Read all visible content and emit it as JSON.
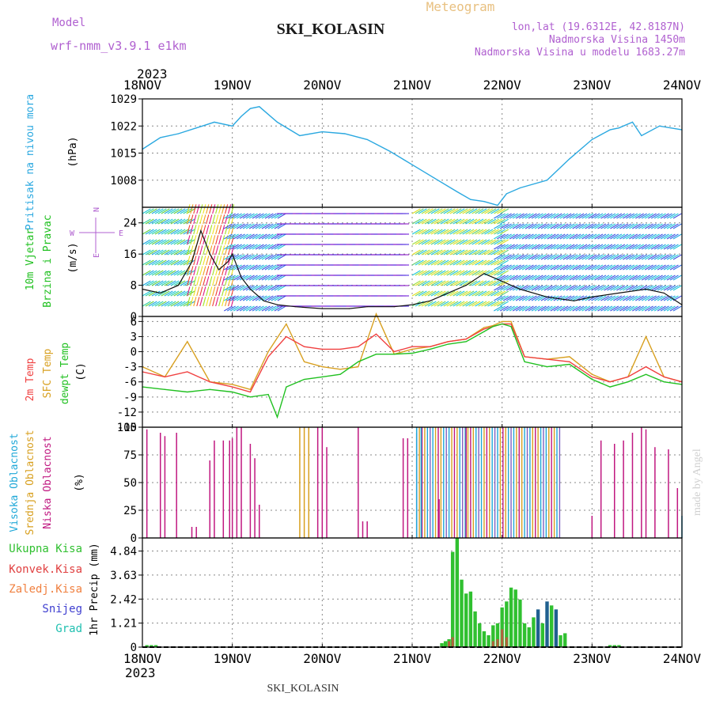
{
  "header": {
    "meteogram": "Meteogram",
    "model_label": "Model",
    "model_name": "wrf-nmm_v3.9.1 e1km",
    "station": "SKI_KOLASIN",
    "lonlat": "lon,lat (19.6312E, 42.8187N)",
    "elevation": "Nadmorska Visina 1450m",
    "model_elevation": "Nadmorska Visina u modelu 1683.27m",
    "year_top": "2023",
    "year_bottom": "2023",
    "footer_station": "SKI_KOLASIN",
    "watermark": "made by Angel"
  },
  "colors": {
    "pressure": "#2aa8e0",
    "t2m": "#f04040",
    "sfc": "#d8a020",
    "dewpt": "#20c020",
    "cloud_high": "#20a8d8",
    "cloud_mid": "#d8a020",
    "cloud_low": "#c01880",
    "precip_total": "#30c030",
    "precip_conv": "#e04040",
    "precip_frz": "#f08040",
    "precip_snow": "#4040d0",
    "precip_grad": "#20c0b0"
  },
  "chart_data": [
    {
      "type": "line",
      "panel": "pressure",
      "ylabel_lines": [
        "Pritisak na nivou mora",
        "(hPa)"
      ],
      "x_ticks": [
        "18NOV",
        "19NOV",
        "20NOV",
        "21NOV",
        "22NOV",
        "23NOV",
        "24NOV"
      ],
      "ylim": [
        1001,
        1029
      ],
      "y_ticks": [
        1008,
        1015,
        1022,
        1029
      ],
      "grid": true,
      "x_unit": "days since 18NOV 00UTC",
      "series": [
        {
          "name": "Pritisak",
          "x": [
            0,
            0.2,
            0.4,
            0.6,
            0.8,
            1.0,
            1.1,
            1.2,
            1.3,
            1.5,
            1.75,
            2.0,
            2.25,
            2.5,
            2.75,
            3.0,
            3.25,
            3.5,
            3.65,
            3.8,
            3.95,
            4.05,
            4.2,
            4.5,
            4.75,
            5.0,
            5.2,
            5.3,
            5.45,
            5.55,
            5.75,
            6.0
          ],
          "values": [
            1016,
            1019,
            1020,
            1021.5,
            1023,
            1022,
            1024.5,
            1026.5,
            1027,
            1023,
            1019.5,
            1020.5,
            1020,
            1018.5,
            1015.5,
            1012,
            1008.5,
            1005,
            1003,
            1002.5,
            1001.5,
            1004.5,
            1006,
            1008,
            1013.5,
            1018.5,
            1021,
            1021.5,
            1023,
            1019.5,
            1022,
            1021
          ]
        }
      ]
    },
    {
      "type": "line",
      "panel": "wind",
      "ylabel_lines": [
        "10m Vjetar",
        "Brzina i Pravac",
        "(m/s)"
      ],
      "compass": [
        "N",
        "E",
        "S",
        "W"
      ],
      "ylim": [
        0,
        28
      ],
      "y_ticks": [
        0,
        8,
        16,
        24
      ],
      "grid": true,
      "x_unit": "days since 18NOV 00UTC",
      "series": [
        {
          "name": "Brzina",
          "x": [
            0,
            0.2,
            0.4,
            0.55,
            0.65,
            0.75,
            0.85,
            0.95,
            1.0,
            1.1,
            1.2,
            1.35,
            1.5,
            1.7,
            2.0,
            2.3,
            2.5,
            2.8,
            3.0,
            3.2,
            3.4,
            3.6,
            3.8,
            4.0,
            4.2,
            4.5,
            4.8,
            5.0,
            5.3,
            5.6,
            5.8,
            6.0
          ],
          "values": [
            7,
            6,
            8,
            14,
            22,
            16,
            12,
            14,
            16,
            10,
            7,
            4,
            3,
            2.5,
            2,
            2,
            2.5,
            2.5,
            3,
            4,
            6,
            8,
            11,
            9,
            7,
            5,
            4,
            5,
            6,
            7,
            6,
            3
          ]
        }
      ],
      "wind_direction_by_segment": [
        {
          "from": 0.0,
          "to": 0.5,
          "direction": "SW",
          "speed_color": "cyan-green"
        },
        {
          "from": 0.5,
          "to": 1.0,
          "direction": "S",
          "speed_color": "yellow-red"
        },
        {
          "from": 1.0,
          "to": 1.6,
          "direction": "NE",
          "speed_color": "blue-cyan"
        },
        {
          "from": 1.6,
          "to": 3.0,
          "direction": "E",
          "speed_color": "violet"
        },
        {
          "from": 3.0,
          "to": 4.0,
          "direction": "SW",
          "speed_color": "cyan-yellow"
        },
        {
          "from": 4.0,
          "to": 6.0,
          "direction": "NE",
          "speed_color": "blue-cyan"
        }
      ]
    },
    {
      "type": "line",
      "panel": "temperature",
      "ylabel_lines": [
        "2m Temp",
        "SFC Temp",
        "dewpt Temp",
        "(C)"
      ],
      "ylim": [
        -15,
        7
      ],
      "y_ticks": [
        -15,
        -12,
        -9,
        -6,
        -3,
        0,
        3,
        6
      ],
      "grid": true,
      "x_unit": "days since 18NOV 00UTC",
      "series": [
        {
          "name": "2m Temp",
          "x": [
            0,
            0.25,
            0.5,
            0.75,
            1.0,
            1.2,
            1.4,
            1.6,
            1.8,
            2.0,
            2.2,
            2.4,
            2.6,
            2.8,
            3.0,
            3.2,
            3.4,
            3.6,
            3.8,
            3.9,
            4.0,
            4.1,
            4.25,
            4.5,
            4.75,
            5.0,
            5.2,
            5.4,
            5.6,
            5.8,
            6.0
          ],
          "values": [
            -4,
            -5,
            -4,
            -6,
            -7,
            -8,
            -1,
            3,
            1,
            0.5,
            0.5,
            1,
            3.5,
            0,
            1,
            1,
            2,
            2.5,
            4.5,
            5,
            5.5,
            5.5,
            -1,
            -1.5,
            -2,
            -5,
            -6,
            -5,
            -3,
            -5,
            -6
          ]
        },
        {
          "name": "SFC Temp",
          "x": [
            0,
            0.25,
            0.5,
            0.75,
            1.0,
            1.2,
            1.4,
            1.6,
            1.8,
            2.0,
            2.2,
            2.4,
            2.6,
            2.8,
            3.0,
            3.2,
            3.4,
            3.6,
            3.8,
            3.9,
            4.0,
            4.1,
            4.25,
            4.5,
            4.75,
            5.0,
            5.2,
            5.4,
            5.6,
            5.8,
            6.0
          ],
          "values": [
            -3,
            -5,
            2,
            -6,
            -6.5,
            -7.5,
            0,
            5.5,
            -2,
            -3,
            -3.5,
            -3,
            7.5,
            -0.5,
            0.5,
            1,
            2,
            2.5,
            4.8,
            5.2,
            6,
            6,
            -1,
            -1.5,
            -1,
            -4.5,
            -6,
            -5,
            3,
            -5,
            -6
          ]
        },
        {
          "name": "dewpt Temp",
          "x": [
            0,
            0.25,
            0.5,
            0.75,
            1.0,
            1.2,
            1.4,
            1.5,
            1.6,
            1.8,
            2.0,
            2.2,
            2.4,
            2.6,
            2.8,
            3.0,
            3.2,
            3.4,
            3.6,
            3.8,
            3.9,
            4.0,
            4.1,
            4.25,
            4.5,
            4.75,
            5.0,
            5.2,
            5.4,
            5.6,
            5.8,
            6.0
          ],
          "values": [
            -7,
            -7.5,
            -8,
            -7.5,
            -8,
            -9,
            -8.5,
            -13,
            -7,
            -5.5,
            -5,
            -4.5,
            -2,
            -0.5,
            -0.5,
            -0.3,
            0.5,
            1.5,
            2,
            4,
            5,
            5.5,
            5,
            -2,
            -3,
            -2.5,
            -5.5,
            -7,
            -6,
            -4.5,
            -6,
            -6.5
          ]
        }
      ]
    },
    {
      "type": "bar",
      "panel": "clouds",
      "ylabel_lines": [
        "Visoka Oblacnost",
        "Srednja Oblacnost",
        "Niska Oblacnost",
        "(%)"
      ],
      "ylim": [
        0,
        100
      ],
      "y_ticks": [
        0,
        25,
        50,
        75,
        100
      ],
      "grid": true,
      "x_unit": "days since 18NOV 00UTC",
      "series": [
        {
          "name": "Niska Oblacnost",
          "x": [
            0.05,
            0.2,
            0.25,
            0.38,
            0.55,
            0.6,
            0.75,
            0.8,
            0.9,
            0.97,
            1.0,
            1.05,
            1.1,
            1.2,
            1.25,
            1.3,
            1.95,
            2.0,
            2.05,
            2.4,
            2.45,
            2.5,
            2.9,
            2.95,
            3.05,
            3.3,
            3.6,
            5.0,
            5.1,
            5.25,
            5.35,
            5.45,
            5.55,
            5.6,
            5.7,
            5.85,
            5.95
          ],
          "values": [
            98,
            95,
            92,
            95,
            10,
            10,
            70,
            88,
            88,
            88,
            90,
            100,
            100,
            85,
            72,
            30,
            100,
            100,
            82,
            100,
            15,
            15,
            90,
            90,
            95,
            35,
            100,
            20,
            88,
            85,
            88,
            95,
            100,
            98,
            82,
            80,
            45
          ]
        },
        {
          "name": "Srednja Oblacnost",
          "x": [
            1.75,
            1.8,
            1.85
          ],
          "values": [
            100,
            100,
            100
          ]
        },
        {
          "name": "Visoka Oblacnost",
          "x": [
            3.05,
            3.1,
            6.0
          ],
          "values": [
            100,
            100,
            20
          ]
        }
      ],
      "dense_band": {
        "from": 3.05,
        "to": 4.65,
        "value": 100
      }
    },
    {
      "type": "bar",
      "panel": "precip",
      "ylabel_lines": [
        "1hr Precip (mm)"
      ],
      "legend": [
        "Ukupna Kisa",
        "Konvek.Kisa",
        "Zaledj.Kisa",
        "Snijeg",
        "Grad"
      ],
      "ylim": [
        0,
        5.5
      ],
      "y_ticks": [
        0,
        1.21,
        2.42,
        3.63,
        4.84
      ],
      "grid": true,
      "x_unit": "days since 18NOV 00UTC",
      "series": [
        {
          "name": "Ukupna Kisa",
          "x": [
            0.05,
            0.1,
            0.15,
            3.33,
            3.37,
            3.41,
            3.45,
            3.5,
            3.55,
            3.6,
            3.65,
            3.7,
            3.75,
            3.8,
            3.85,
            3.9,
            3.95,
            4.0,
            4.05,
            4.1,
            4.15,
            4.2,
            4.25,
            4.3,
            4.35,
            4.4,
            4.45,
            4.5,
            4.55,
            4.6,
            4.65,
            4.7,
            5.2,
            5.25,
            5.3
          ],
          "values": [
            0.1,
            0.1,
            0.1,
            0.2,
            0.3,
            0.4,
            4.8,
            5.6,
            3.4,
            2.7,
            2.8,
            1.8,
            1.2,
            0.8,
            0.6,
            1.1,
            1.2,
            2.0,
            2.3,
            3.0,
            2.9,
            2.4,
            1.2,
            1.0,
            1.5,
            1.9,
            1.2,
            2.3,
            2.1,
            1.9,
            0.6,
            0.7,
            0.1,
            0.1,
            0.1
          ]
        },
        {
          "name": "Konvek.Kisa",
          "x": [
            3.41,
            3.45,
            3.9,
            3.95,
            4.0,
            4.05
          ],
          "values": [
            0.3,
            0.5,
            0.3,
            0.4,
            0.9,
            0.5
          ]
        }
      ]
    }
  ]
}
